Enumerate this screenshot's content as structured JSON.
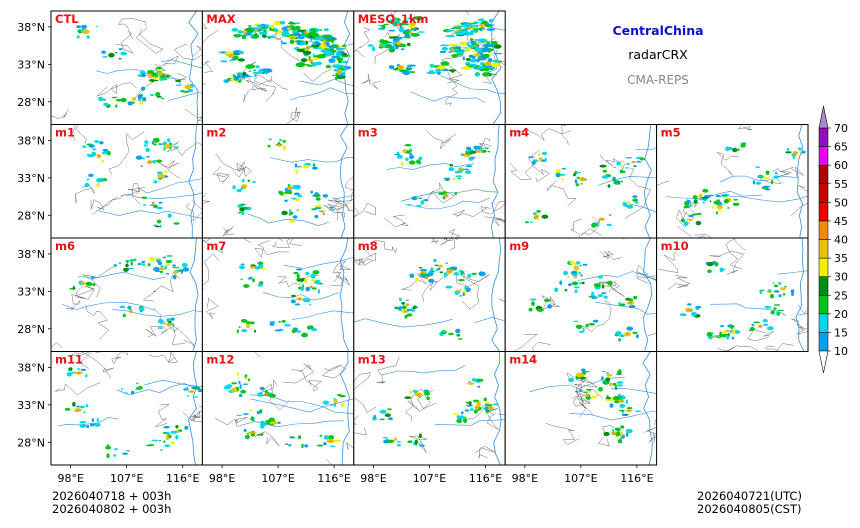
{
  "header": {
    "region": "CentralChina",
    "variable": "radarCRX",
    "model": "CMA-REPS"
  },
  "colors": {
    "region": "#1010d0",
    "model": "#888888",
    "panel_label": "#ee1111",
    "boundary": "#444444",
    "river": "#2f8fe8"
  },
  "panels": [
    "CTL",
    "MAX",
    "MESO_1km",
    "m1",
    "m2",
    "m3",
    "m4",
    "m5",
    "m6",
    "m7",
    "m8",
    "m9",
    "m10",
    "m11",
    "m12",
    "m13",
    "m14"
  ],
  "axes": {
    "lat_labels": [
      "38°N",
      "33°N",
      "28°N"
    ],
    "lon_labels": [
      "98°E",
      "107°E",
      "116°E"
    ]
  },
  "colorbar": {
    "levels": [
      "10",
      "15",
      "20",
      "25",
      "30",
      "35",
      "40",
      "45",
      "50",
      "55",
      "60",
      "65",
      "70"
    ],
    "colors": [
      "#0aa0f0",
      "#00d8e8",
      "#00c418",
      "#008c10",
      "#f0f000",
      "#e8c400",
      "#f08c00",
      "#f00000",
      "#d00000",
      "#b00000",
      "#f000f0",
      "#9010b8",
      "#a888d0"
    ]
  },
  "footer": {
    "init_utc": "2026040718  +  003h",
    "init_cst": "2026040802  +  003h",
    "valid_utc": "2026040721(UTC)",
    "valid_cst": "2026040805(CST)"
  }
}
